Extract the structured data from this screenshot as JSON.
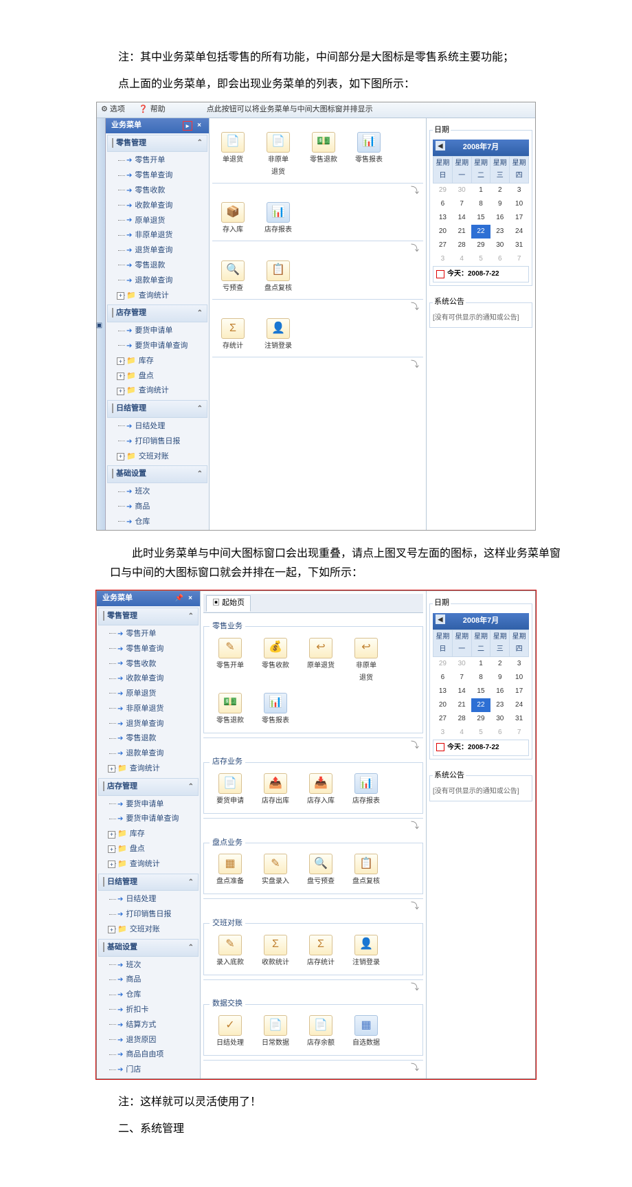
{
  "text": {
    "p1": "注：其中业务菜单包括零售的所有功能，中间部分是大图标是零售系统主要功能；",
    "p2": "点上面的业务菜单，即会出现业务菜单的列表，如下图所示：",
    "p3": "此时业务菜单与中间大图标窗口会出现重叠，请点上图叉号左面的图标，这样业务菜单窗口与中间的大图标窗口就会并排在一起，下如所示：",
    "p4": "注：这样就可以灵活使用了！",
    "p5": "二、系统管理"
  },
  "toolbar": {
    "options": "选项",
    "help": "帮助"
  },
  "annotation": "点此按钮可以将业务菜单与中间大图标窗并排显示",
  "menu": {
    "title": "业务菜单",
    "start_page": "起始页",
    "cat_retail": "零售管理",
    "cat_store": "店存管理",
    "cat_daily": "日结管理",
    "cat_basic": "基础设置",
    "retail_items": [
      "零售开单",
      "零售单查询",
      "零售收款",
      "收款单查询",
      "原单退货",
      "非原单退货",
      "退货单查询",
      "零售退款",
      "退款单查询"
    ],
    "retail_stat": "查询统计",
    "store_items": [
      "要货申请单",
      "要货申请单查询"
    ],
    "store_folders": [
      "库存",
      "盘点",
      "查询统计"
    ],
    "daily_items": [
      "日结处理",
      "打印销售日报"
    ],
    "daily_folder": "交班对账",
    "basic_items_s1": [
      "班次",
      "商品",
      "仓库"
    ],
    "basic_items_s2": [
      "班次",
      "商品",
      "仓库",
      "折扣卡",
      "结算方式",
      "退货原因",
      "商品自由项",
      "门店"
    ]
  },
  "shortcuts_overlap": [
    {
      "label": "单退货",
      "g": "📄"
    },
    {
      "label": "非原单\n退货",
      "g": "📄"
    },
    {
      "label": "零售退款",
      "g": "💵"
    },
    {
      "label": "零售报表",
      "g": "📊",
      "cls": "ic-report"
    }
  ],
  "shortcuts_overlap2": [
    {
      "label": "存入库",
      "g": "📦"
    },
    {
      "label": "店存报表",
      "g": "📊",
      "cls": "ic-report"
    }
  ],
  "shortcuts_overlap3": [
    {
      "label": "亏预查",
      "g": "🔍"
    },
    {
      "label": "盘点复核",
      "g": "📋"
    }
  ],
  "shortcuts_overlap4": [
    {
      "label": "存统计",
      "g": "Σ"
    },
    {
      "label": "注销登录",
      "g": "👤"
    }
  ],
  "sections": {
    "retail_biz": {
      "title": "零售业务",
      "items": [
        {
          "label": "零售开单",
          "g": "✎"
        },
        {
          "label": "零售收款",
          "g": "💰"
        },
        {
          "label": "原单退货",
          "g": "↩"
        },
        {
          "label": "非原单\n退货",
          "g": "↩"
        },
        {
          "label": "零售退款",
          "g": "💵"
        },
        {
          "label": "零售报表",
          "g": "📊",
          "cls": "ic-report"
        }
      ]
    },
    "store_biz": {
      "title": "店存业务",
      "items": [
        {
          "label": "要货申请",
          "g": "📄"
        },
        {
          "label": "店存出库",
          "g": "📤"
        },
        {
          "label": "店存入库",
          "g": "📥"
        },
        {
          "label": "店存报表",
          "g": "📊",
          "cls": "ic-report"
        }
      ]
    },
    "check_biz": {
      "title": "盘点业务",
      "items": [
        {
          "label": "盘点准备",
          "g": "▦"
        },
        {
          "label": "实盘录入",
          "g": "✎"
        },
        {
          "label": "盘亏预查",
          "g": "🔍"
        },
        {
          "label": "盘点复核",
          "g": "📋"
        }
      ]
    },
    "shift_biz": {
      "title": "交班对账",
      "items": [
        {
          "label": "录入底款",
          "g": "✎"
        },
        {
          "label": "收款统计",
          "g": "Σ"
        },
        {
          "label": "店存统计",
          "g": "Σ"
        },
        {
          "label": "注销登录",
          "g": "👤"
        }
      ]
    },
    "data_biz": {
      "title": "数据交换",
      "items": [
        {
          "label": "日结处理",
          "g": "✓"
        },
        {
          "label": "日常数据",
          "g": "📄"
        },
        {
          "label": "店存余额",
          "g": "📄"
        },
        {
          "label": "自选数据",
          "g": "▦",
          "cls": "ic-report"
        }
      ]
    }
  },
  "side_panel": {
    "date_title": "日期",
    "month": "2008年7月",
    "weekdays": [
      "星期日",
      "星期一",
      "星期二",
      "星期三",
      "星期四"
    ],
    "weeks": [
      [
        {
          "d": "29",
          "dim": true
        },
        {
          "d": "30",
          "dim": true
        },
        {
          "d": "1"
        },
        {
          "d": "2"
        },
        {
          "d": "3"
        }
      ],
      [
        {
          "d": "6"
        },
        {
          "d": "7"
        },
        {
          "d": "8"
        },
        {
          "d": "9"
        },
        {
          "d": "10"
        }
      ],
      [
        {
          "d": "13"
        },
        {
          "d": "14"
        },
        {
          "d": "15"
        },
        {
          "d": "16"
        },
        {
          "d": "17"
        }
      ],
      [
        {
          "d": "20"
        },
        {
          "d": "21"
        },
        {
          "d": "22",
          "sel": true
        },
        {
          "d": "23"
        },
        {
          "d": "24"
        }
      ],
      [
        {
          "d": "27"
        },
        {
          "d": "28"
        },
        {
          "d": "29"
        },
        {
          "d": "30"
        },
        {
          "d": "31"
        }
      ],
      [
        {
          "d": "3",
          "dim": true
        },
        {
          "d": "4",
          "dim": true
        },
        {
          "d": "5",
          "dim": true
        },
        {
          "d": "6",
          "dim": true
        },
        {
          "d": "7",
          "dim": true
        }
      ]
    ],
    "today": "今天：2008-7-22",
    "notice_title": "系统公告",
    "notice_empty": "[没有可供显示的通知或公告]"
  }
}
